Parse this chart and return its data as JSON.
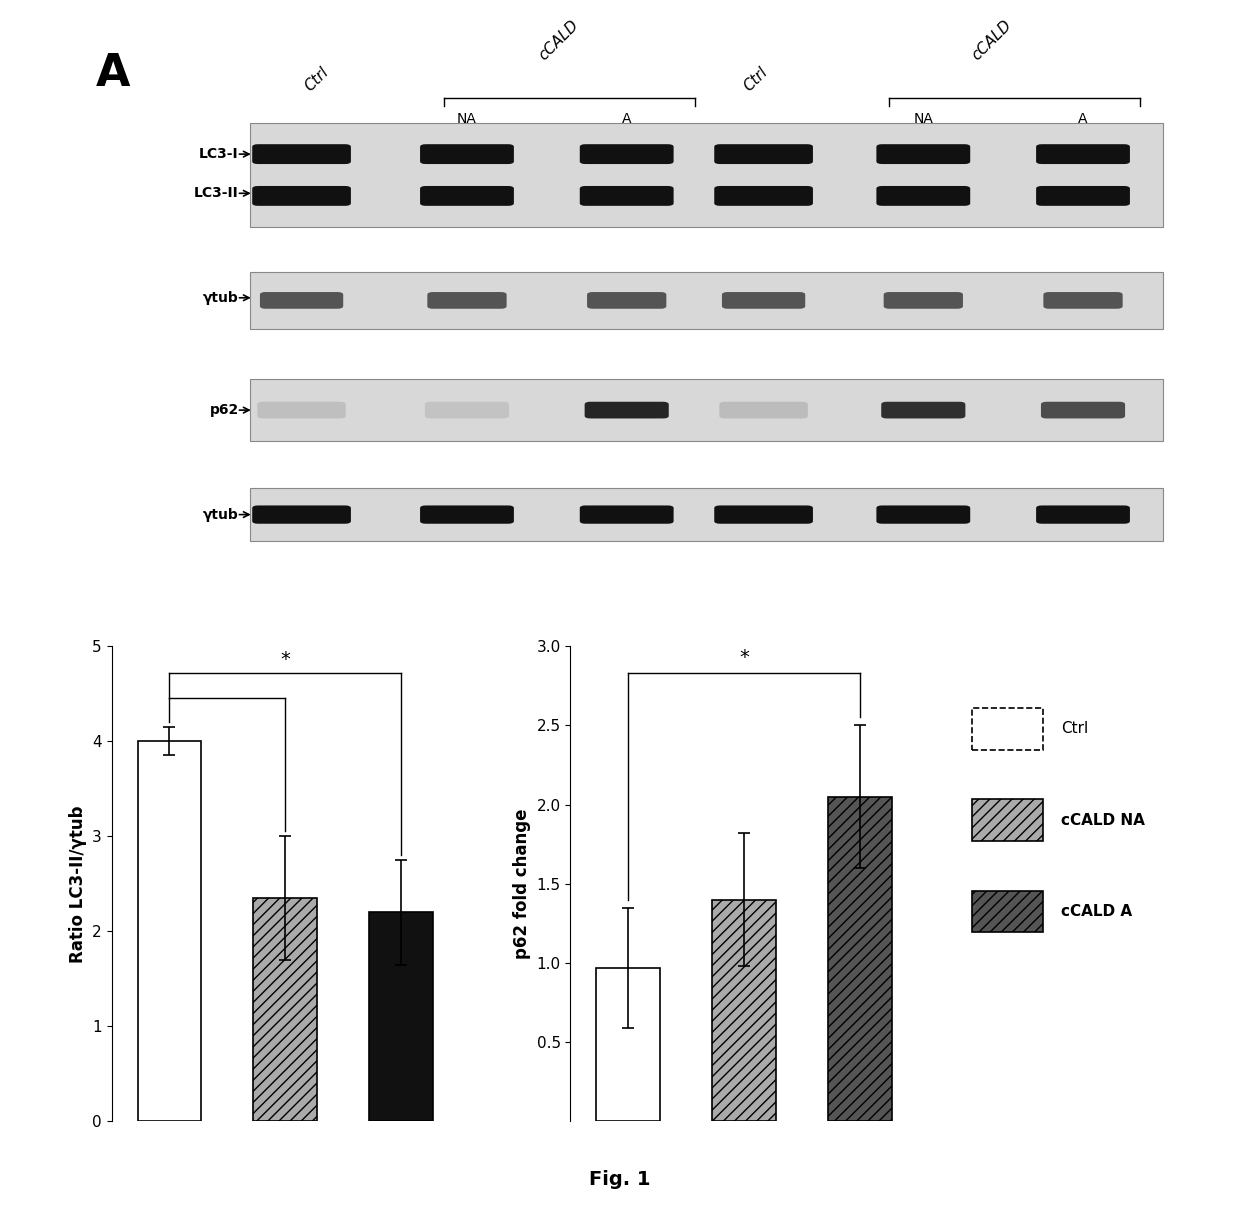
{
  "panel_A_label": "A",
  "fig_label": "Fig. 1",
  "wb_labels_left": [
    "LC3-I",
    "LC3-II",
    "γtub",
    "p62",
    "γtub"
  ],
  "bar1_values": [
    4.0,
    2.35,
    2.2
  ],
  "bar1_errors": [
    0.15,
    0.65,
    0.55
  ],
  "bar1_ylabel": "Ratio LC3-II/γtub",
  "bar1_ylim": [
    0,
    5
  ],
  "bar1_yticks": [
    0,
    1,
    2,
    3,
    4,
    5
  ],
  "bar2_values": [
    0.97,
    1.4,
    2.05
  ],
  "bar2_errors": [
    0.38,
    0.42,
    0.45
  ],
  "bar2_ylabel": "p62 fold change",
  "bar2_ylim": [
    0.0,
    3.0
  ],
  "bar2_yticks": [
    0.5,
    1.0,
    1.5,
    2.0,
    2.5,
    3.0
  ],
  "legend_labels": [
    "Ctrl",
    "cCALD NA",
    "cCALD A"
  ],
  "significance_star": "*",
  "background_color": "white",
  "font_color": "black"
}
